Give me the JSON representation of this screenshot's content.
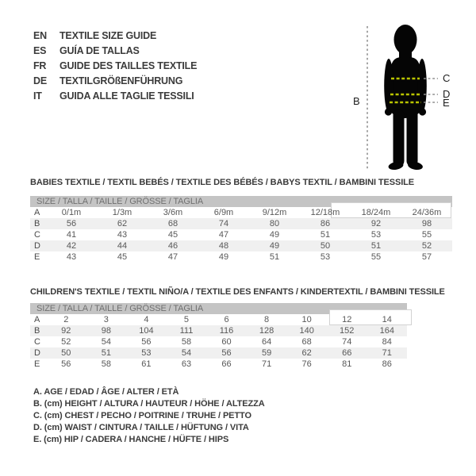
{
  "languages": [
    {
      "code": "EN",
      "label": "TEXTILE SIZE GUIDE"
    },
    {
      "code": "ES",
      "label": "GUÍA DE TALLAS"
    },
    {
      "code": "FR",
      "label": "GUIDE DES TAILLES TEXTILE"
    },
    {
      "code": "DE",
      "label": "TEXTILGRÖßENFÜHRUNG"
    },
    {
      "code": "IT",
      "label": "GUIDA ALLE TAGLIE TESSILI"
    }
  ],
  "figure": {
    "labels": {
      "b": "B",
      "c": "C",
      "d": "D",
      "e": "E"
    },
    "silhouette_color": "#050505",
    "measure_dash_color": "#b9c400",
    "guide_dash_color": "#8f8f8f"
  },
  "babies_table": {
    "title": "BABIES TEXTILE / TEXTIL BEBÉS / TEXTILE DES BÉBÉS / BABYS TEXTIL / BAMBINI TESSILE",
    "header": "SIZE / TALLA / TAILLE / GRÖSSE / TAGLIA",
    "rows": [
      {
        "label": "A",
        "values": [
          "0/1m",
          "1/3m",
          "3/6m",
          "6/9m",
          "9/12m",
          "12/18m",
          "18/24m",
          "24/36m"
        ]
      },
      {
        "label": "B",
        "values": [
          "56",
          "62",
          "68",
          "74",
          "80",
          "86",
          "92",
          "98"
        ]
      },
      {
        "label": "C",
        "values": [
          "41",
          "43",
          "45",
          "47",
          "49",
          "51",
          "53",
          "55"
        ]
      },
      {
        "label": "D",
        "values": [
          "42",
          "44",
          "46",
          "48",
          "49",
          "50",
          "51",
          "52"
        ]
      },
      {
        "label": "E",
        "values": [
          "43",
          "45",
          "47",
          "49",
          "51",
          "53",
          "55",
          "57"
        ]
      }
    ]
  },
  "children_table": {
    "title": "CHILDREN'S TEXTILE / TEXTIL NIÑO/A / TEXTILE DES ENFANTS / KINDERTEXTIL / BAMBINI TESSILE",
    "header": "SIZE / TALLA / TAILLE / GRÖSSE / TAGLIA",
    "rows": [
      {
        "label": "A",
        "values": [
          "2",
          "3",
          "4",
          "5",
          "6",
          "8",
          "10",
          "12",
          "14"
        ]
      },
      {
        "label": "B",
        "values": [
          "92",
          "98",
          "104",
          "111",
          "116",
          "128",
          "140",
          "152",
          "164"
        ]
      },
      {
        "label": "C",
        "values": [
          "52",
          "54",
          "56",
          "58",
          "60",
          "64",
          "68",
          "74",
          "84"
        ]
      },
      {
        "label": "D",
        "values": [
          "50",
          "51",
          "53",
          "54",
          "56",
          "59",
          "62",
          "66",
          "71"
        ]
      },
      {
        "label": "E",
        "values": [
          "56",
          "58",
          "61",
          "63",
          "66",
          "71",
          "76",
          "81",
          "86"
        ]
      }
    ]
  },
  "legend": [
    "A. AGE / EDAD / ÂGE / ALTER / ETÀ",
    "B. (cm) HEIGHT / ALTURA / HAUTEUR / HÖHE / ALTEZZA",
    "C. (cm) CHEST / PECHO / POITRINE / TRUHE / PETTO",
    "D. (cm) WAIST / CINTURA / TAILLE / HÜFTUNG / VITA",
    "E. (cm) HIP / CADERA / HANCHE / HÜFTE / HIPS"
  ],
  "colors": {
    "header_bar_bg": "#c4c4c4",
    "stripe_bg": "#f0f0f0",
    "accent_dash": "#b9c400"
  }
}
